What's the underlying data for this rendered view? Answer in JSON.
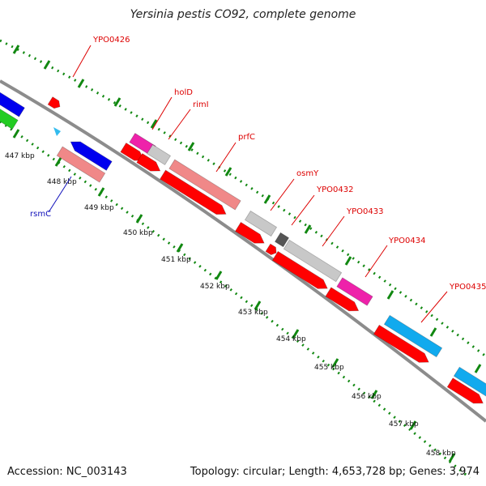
{
  "title": "Yersinia pestis CO92, complete genome",
  "footer": {
    "accession": "Accession: NC_003143",
    "topology": "Topology: circular; Length: 4,653,728 bp; Genes: 3,974"
  },
  "colors": {
    "backbone": "#8c8c8c",
    "ticks": "#118811",
    "label_red": "#dd0000",
    "label_blue": "#1111bb",
    "red": "#ff0000",
    "salmon": "#f08888",
    "grey": "#c8c8c8",
    "darkgrey": "#555555",
    "magenta": "#ee22aa",
    "blue": "#0000ee",
    "cyan": "#11aaee",
    "green": "#22cc22",
    "lightblue": "#33bbee"
  },
  "scale_labels": [
    "447 kbp",
    "448 kbp",
    "449 kbp",
    "450 kbp",
    "451 kbp",
    "452 kbp",
    "453 kbp",
    "454 kbp",
    "455 kbp",
    "456 kbp",
    "457 kbp",
    "458 kbp"
  ],
  "gene_labels": [
    {
      "name": "YPO0426",
      "color": "red"
    },
    {
      "name": "holD",
      "color": "red"
    },
    {
      "name": "rimI",
      "color": "red"
    },
    {
      "name": "prfC",
      "color": "red"
    },
    {
      "name": "osmY",
      "color": "red"
    },
    {
      "name": "YPO0432",
      "color": "red"
    },
    {
      "name": "YPO0433",
      "color": "red"
    },
    {
      "name": "YPO0434",
      "color": "red"
    },
    {
      "name": "YPO0435",
      "color": "red"
    },
    {
      "name": "rsmC",
      "color": "blue"
    }
  ]
}
